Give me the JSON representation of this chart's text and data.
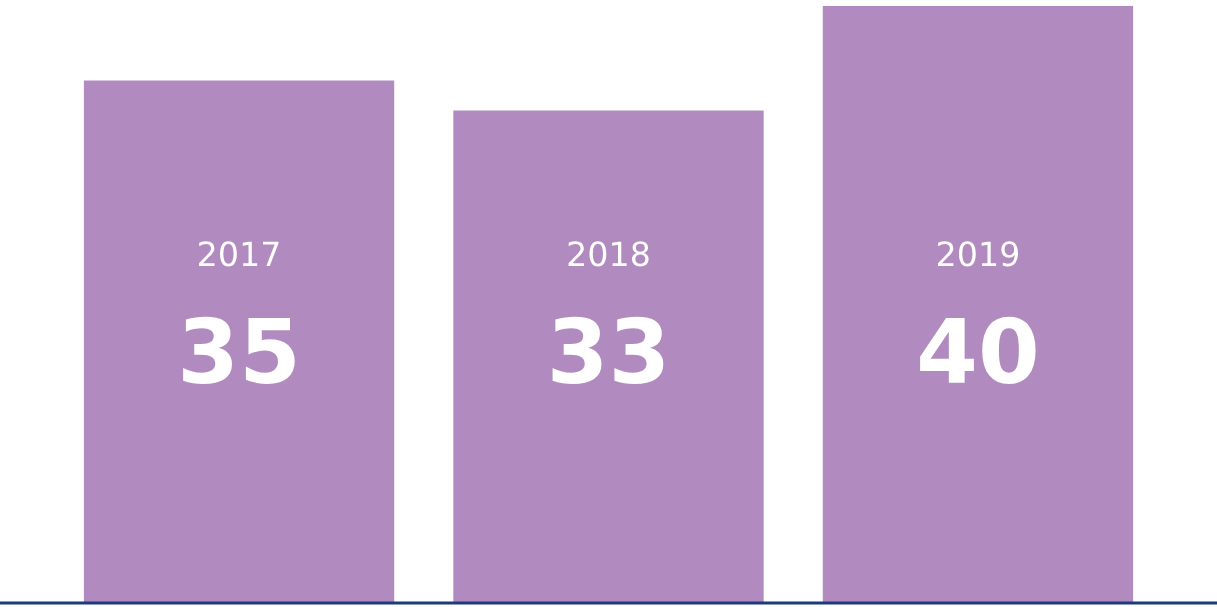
{
  "chart_data": {
    "type": "bar",
    "categories": [
      "2017",
      "2018",
      "2019"
    ],
    "values": [
      35,
      33,
      40
    ],
    "color": "#b18bc0",
    "ylim": [
      0,
      40
    ],
    "data_labels": true
  }
}
